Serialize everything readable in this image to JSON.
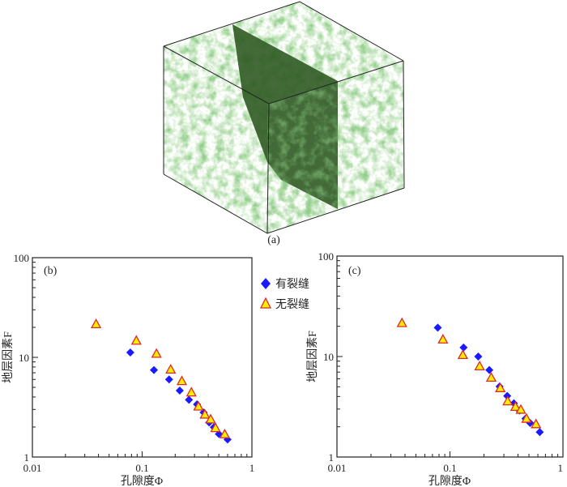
{
  "figure": {
    "panel_a_caption": "(a)",
    "legend": [
      {
        "label": "有裂缝",
        "marker": "diamond",
        "color": "#1a1aff"
      },
      {
        "label": "无裂缝",
        "marker": "triangle",
        "color": "#ffee00",
        "edge": "#e0282a"
      }
    ],
    "colors": {
      "rock": "#5fae4f",
      "fracture": "#2f5a22"
    }
  },
  "chart_data": [
    {
      "type": "scatter",
      "panel_label": "(b)",
      "xlabel": "孔隙度Φ",
      "ylabel": "地层因素F",
      "xscale": "log",
      "yscale": "log",
      "xlim": [
        0.01,
        1
      ],
      "ylim": [
        1,
        100
      ],
      "xticks": [
        "0.01",
        "0.1",
        "1"
      ],
      "yticks": [
        "1",
        "10",
        "100"
      ],
      "series": [
        {
          "name": "有裂缝",
          "x": [
            0.078,
            0.128,
            0.176,
            0.22,
            0.267,
            0.316,
            0.363,
            0.408,
            0.45,
            0.5,
            0.6
          ],
          "y": [
            11.2,
            7.46,
            6.0,
            4.64,
            3.75,
            3.38,
            2.8,
            2.22,
            1.99,
            1.7,
            1.5
          ]
        },
        {
          "name": "无裂缝",
          "x": [
            0.038,
            0.0885,
            0.135,
            0.182,
            0.23,
            0.281,
            0.326,
            0.373,
            0.421,
            0.466,
            0.565
          ],
          "y": [
            21.4,
            14.6,
            10.8,
            7.5,
            5.74,
            4.42,
            3.19,
            2.65,
            2.37,
            1.94,
            1.68
          ]
        }
      ]
    },
    {
      "type": "scatter",
      "panel_label": "(c)",
      "xlabel": "孔隙度Φ",
      "ylabel": "地层因素F",
      "xscale": "log",
      "yscale": "log",
      "xlim": [
        0.01,
        1
      ],
      "ylim": [
        1,
        100
      ],
      "xticks": [
        "0.01",
        "0.1",
        "1"
      ],
      "yticks": [
        "1",
        "10",
        "100"
      ],
      "series": [
        {
          "name": "有裂缝",
          "x": [
            0.078,
            0.132,
            0.178,
            0.223,
            0.275,
            0.321,
            0.368,
            0.413,
            0.466,
            0.512,
            0.623
          ],
          "y": [
            19.4,
            12.3,
            10.0,
            7.34,
            5.03,
            4.05,
            3.43,
            2.9,
            2.41,
            2.18,
            1.77
          ]
        },
        {
          "name": "无裂缝",
          "x": [
            0.0376,
            0.0867,
            0.13,
            0.183,
            0.232,
            0.279,
            0.324,
            0.38,
            0.424,
            0.476,
            0.577
          ],
          "y": [
            21.4,
            14.7,
            10.3,
            7.95,
            6.13,
            4.82,
            3.56,
            3.14,
            2.94,
            2.39,
            2.11
          ]
        }
      ]
    }
  ]
}
